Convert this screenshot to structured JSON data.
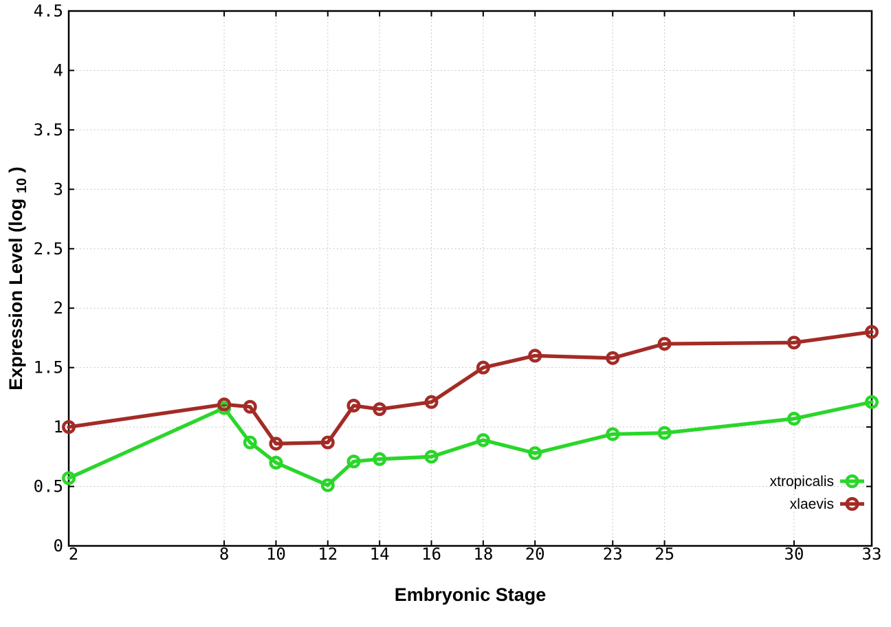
{
  "figure": {
    "background_color": "#ffffff",
    "axis_color": "#000000",
    "grid_color": "#c6c6c6"
  },
  "chart_data": {
    "type": "line",
    "title": "",
    "xlabel": "Embryonic Stage",
    "ylabel_parts": {
      "main": "Expression Level (log",
      "sub": "10",
      "end": ")"
    },
    "x": [
      2,
      8,
      9,
      10,
      12,
      13,
      14,
      16,
      18,
      20,
      23,
      25,
      30,
      33
    ],
    "series": [
      {
        "name": "xtropicalis",
        "color": "#2ad62a",
        "values": [
          0.57,
          1.16,
          0.87,
          0.7,
          0.51,
          0.71,
          0.73,
          0.75,
          0.89,
          0.78,
          0.94,
          0.95,
          1.07,
          1.21
        ]
      },
      {
        "name": "xlaevis",
        "color": "#a32b26",
        "values": [
          1.0,
          1.19,
          1.17,
          0.86,
          0.87,
          1.18,
          1.15,
          1.21,
          1.5,
          1.6,
          1.58,
          1.7,
          1.71,
          1.8
        ]
      }
    ],
    "xlim": [
      2,
      33
    ],
    "ylim": [
      0,
      4.5
    ],
    "xtick_values": [
      2,
      8,
      10,
      12,
      14,
      16,
      18,
      20,
      23,
      25,
      30,
      33
    ],
    "xtick_labels": [
      "2",
      "8",
      "10",
      "12",
      "14",
      "16",
      "18",
      "20",
      "23",
      "25",
      "30",
      "33"
    ],
    "ytick_values": [
      0,
      0.5,
      1,
      1.5,
      2,
      2.5,
      3,
      3.5,
      4,
      4.5
    ],
    "ytick_labels": [
      "0",
      "0.5",
      "1",
      "1.5",
      "2",
      "2.5",
      "3",
      "3.5",
      "4",
      "4.5"
    ],
    "grid": true,
    "grid_style": "dotted",
    "legend_position": "inside-bottom-right",
    "marker": "open-circle"
  }
}
